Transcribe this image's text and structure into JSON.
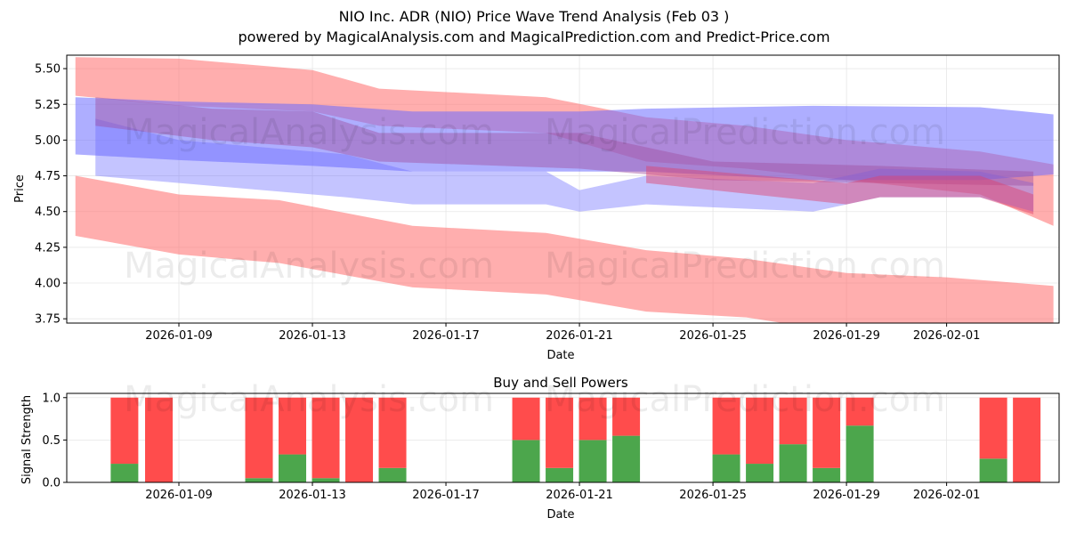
{
  "title": "NIO Inc. ADR (NIO) Price Wave Trend Analysis (Feb 03 )",
  "subtitle": "powered by MagicalAnalysis.com and MagicalPrediction.com and Predict-Price.com",
  "watermarks": [
    "MagicalAnalysis.com",
    "MagicalPrediction.com"
  ],
  "chart_data": [
    {
      "type": "area",
      "title": "",
      "xlabel": "Date",
      "ylabel": "Price",
      "x_unit": "day of 2026 (Jan 1 = 1)",
      "xlim": [
        5.64,
        35.37
      ],
      "ylim": [
        3.72,
        5.594
      ],
      "grid": true,
      "yticks": [
        "3.75",
        "4.00",
        "4.25",
        "4.50",
        "4.75",
        "5.00",
        "5.25",
        "5.50"
      ],
      "ytick_values": [
        3.75,
        4.0,
        4.25,
        4.5,
        4.75,
        5.0,
        5.25,
        5.5
      ],
      "xticks": [
        "2026-01-09",
        "2026-01-13",
        "2026-01-17",
        "2026-01-21",
        "2026-01-25",
        "2026-01-29",
        "2026-02-01"
      ],
      "xtick_values": [
        9,
        13,
        17,
        21,
        25,
        29,
        32
      ],
      "bands": [
        {
          "name": "red-upper",
          "color": "#ff6b6b",
          "opacity": 0.55,
          "points": [
            [
              5.9,
              5.58,
              5.31
            ],
            [
              9,
              5.57,
              5.24
            ],
            [
              13,
              5.49,
              5.2
            ],
            [
              15,
              5.36,
              5.1
            ],
            [
              20,
              5.3,
              5.05
            ],
            [
              23,
              5.16,
              4.85
            ],
            [
              26,
              5.1,
              4.8
            ],
            [
              29,
              5.0,
              4.72
            ],
            [
              33,
              4.92,
              4.62
            ],
            [
              35.2,
              4.83,
              4.4
            ]
          ]
        },
        {
          "name": "red-lower",
          "color": "#ff6b6b",
          "opacity": 0.55,
          "points": [
            [
              5.9,
              4.75,
              4.33
            ],
            [
              9,
              4.62,
              4.2
            ],
            [
              12,
              4.58,
              4.14
            ],
            [
              16,
              4.4,
              3.97
            ],
            [
              20,
              4.35,
              3.92
            ],
            [
              23,
              4.23,
              3.8
            ],
            [
              26,
              4.17,
              3.76
            ],
            [
              29,
              4.07,
              3.65
            ],
            [
              32,
              4.04,
              3.62
            ],
            [
              35.2,
              3.98,
              3.6
            ]
          ]
        },
        {
          "name": "blue-upper",
          "color": "#6b6bff",
          "opacity": 0.55,
          "points": [
            [
              5.9,
              5.3,
              4.9
            ],
            [
              9,
              5.27,
              4.86
            ],
            [
              13,
              5.25,
              4.82
            ],
            [
              16,
              5.2,
              4.78
            ],
            [
              21,
              5.2,
              4.78
            ],
            [
              23,
              5.22,
              4.78
            ],
            [
              28,
              5.24,
              4.72
            ],
            [
              33,
              5.23,
              4.72
            ],
            [
              35.2,
              5.18,
              4.76
            ]
          ]
        },
        {
          "name": "blue-mid",
          "color": "#6b6bff",
          "opacity": 0.4,
          "points": [
            [
              6.5,
              5.15,
              4.75
            ],
            [
              9,
              5.0,
              4.7
            ],
            [
              14,
              4.9,
              4.6
            ],
            [
              16,
              4.78,
              4.55
            ],
            [
              20,
              4.78,
              4.55
            ],
            [
              21,
              4.65,
              4.5
            ],
            [
              23,
              4.75,
              4.55
            ],
            [
              28,
              4.7,
              4.5
            ],
            [
              30,
              4.8,
              4.6
            ],
            [
              33,
              4.78,
              4.6
            ],
            [
              34.6,
              4.7,
              4.5
            ]
          ]
        },
        {
          "name": "purple-mid",
          "color": "#a050a0",
          "opacity": 0.45,
          "points": [
            [
              6.5,
              5.3,
              5.1
            ],
            [
              10,
              5.22,
              5.0
            ],
            [
              13,
              5.2,
              4.95
            ],
            [
              15,
              5.05,
              4.85
            ],
            [
              21,
              5.05,
              4.8
            ],
            [
              25,
              4.85,
              4.72
            ],
            [
              30,
              4.82,
              4.7
            ],
            [
              34.6,
              4.78,
              4.68
            ]
          ]
        },
        {
          "name": "red-mid",
          "color": "#e0406a",
          "opacity": 0.45,
          "points": [
            [
              23,
              4.82,
              4.7
            ],
            [
              29,
              4.7,
              4.55
            ],
            [
              30,
              4.75,
              4.6
            ],
            [
              33,
              4.75,
              4.6
            ],
            [
              34.6,
              4.62,
              4.48
            ]
          ]
        }
      ]
    },
    {
      "type": "bar",
      "title": "Buy and Sell Powers",
      "xlabel": "Date",
      "ylabel": "Signal Strength",
      "ylim": [
        0,
        1.05
      ],
      "xlim": [
        5.64,
        35.37
      ],
      "yticks": [
        "0.0",
        "0.5",
        "1.0"
      ],
      "ytick_values": [
        0,
        0.5,
        1.0
      ],
      "xticks": [
        "2026-01-09",
        "2026-01-13",
        "2026-01-17",
        "2026-01-21",
        "2026-01-25",
        "2026-01-29",
        "2026-02-01"
      ],
      "xtick_values": [
        9,
        13,
        17,
        21,
        25,
        29,
        32
      ],
      "x": [
        7.37,
        8.4,
        11.4,
        12.4,
        13.4,
        14.4,
        15.4,
        19.4,
        20.4,
        21.4,
        22.4,
        25.4,
        26.4,
        27.4,
        28.4,
        29.4,
        33.4,
        34.4
      ],
      "series": [
        {
          "name": "Buy",
          "color": "#4ca64c",
          "values": [
            0.22,
            0,
            0.05,
            0.33,
            0.05,
            0,
            0.17,
            0.5,
            0.17,
            0.5,
            0.55,
            0.33,
            0.22,
            0.45,
            0.17,
            0.67,
            0.28,
            0
          ]
        },
        {
          "name": "Sell",
          "color": "#ff4c4c",
          "values": [
            0.78,
            1,
            0.95,
            0.67,
            0.95,
            1,
            0.83,
            0.5,
            0.83,
            0.5,
            0.45,
            0.67,
            0.78,
            0.55,
            0.83,
            0.33,
            0.72,
            1
          ]
        }
      ]
    }
  ]
}
